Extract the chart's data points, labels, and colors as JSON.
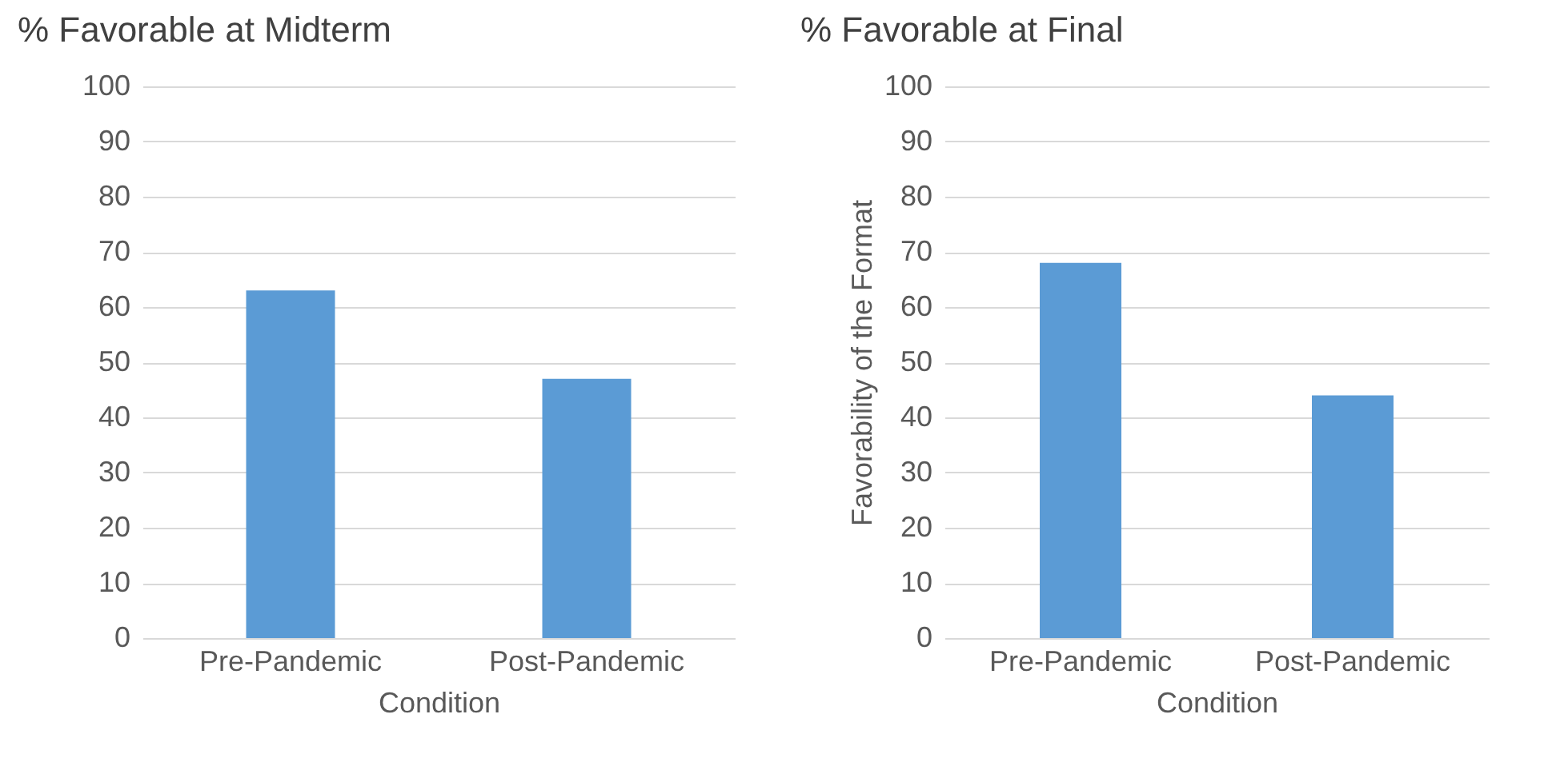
{
  "chart_data": [
    {
      "type": "bar",
      "title": "% Favorable at Midterm",
      "xlabel": "Condition",
      "categories": [
        "Pre-Pandemic",
        "Post-Pandemic"
      ],
      "series": [
        {
          "color": "#5b9bd5",
          "values": [
            63,
            47
          ]
        }
      ],
      "ylim": [
        0,
        100
      ],
      "yticks": [
        0,
        10,
        20,
        30,
        40,
        50,
        60,
        70,
        80,
        90,
        100
      ],
      "grid": "y"
    },
    {
      "type": "bar",
      "title": "% Favorable at Final",
      "xlabel": "Condition",
      "ylabel": "Favorability of the Format",
      "categories": [
        "Pre-Pandemic",
        "Post-Pandemic"
      ],
      "series": [
        {
          "color": "#5b9bd5",
          "values": [
            68,
            44
          ]
        }
      ],
      "ylim": [
        0,
        100
      ],
      "yticks": [
        0,
        10,
        20,
        30,
        40,
        50,
        60,
        70,
        80,
        90,
        100
      ],
      "grid": "y"
    }
  ]
}
